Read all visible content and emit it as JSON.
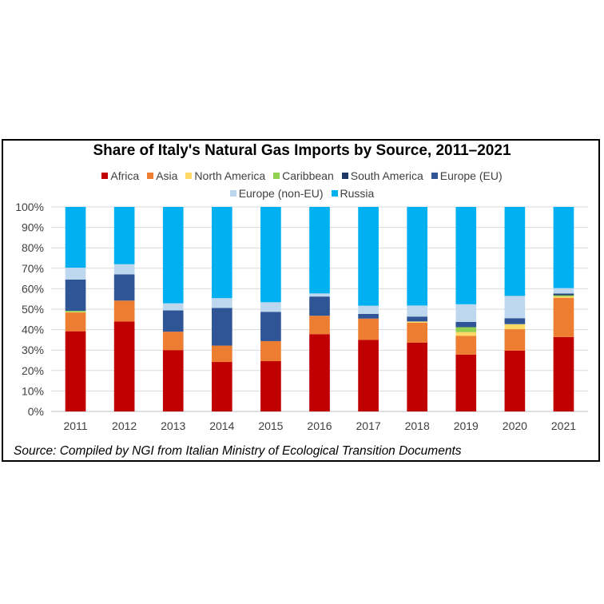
{
  "chart_data": {
    "type": "bar",
    "stacked": true,
    "title": "Share of Italy's Natural Gas Imports by Source, 2011–2021",
    "categories": [
      "2011",
      "2012",
      "2013",
      "2014",
      "2015",
      "2016",
      "2017",
      "2018",
      "2019",
      "2020",
      "2021"
    ],
    "yticks": [
      "0%",
      "10%",
      "20%",
      "30%",
      "40%",
      "50%",
      "60%",
      "70%",
      "80%",
      "90%",
      "100%"
    ],
    "ylim": [
      0,
      100
    ],
    "legend_position": "top",
    "series": [
      {
        "name": "Africa",
        "color": "#C00000",
        "values": [
          39.2,
          44.0,
          30.0,
          24.2,
          24.6,
          37.8,
          35.0,
          33.6,
          27.8,
          29.7,
          36.4
        ]
      },
      {
        "name": "Asia",
        "color": "#ED7D31",
        "values": [
          9.2,
          10.2,
          9.0,
          8.0,
          9.8,
          9.0,
          10.4,
          9.8,
          9.2,
          10.5,
          19.2
        ]
      },
      {
        "name": "North America",
        "color": "#FFD966",
        "values": [
          0.2,
          0,
          0,
          0,
          0,
          0,
          0,
          0.6,
          1.8,
          2.5,
          0.6
        ]
      },
      {
        "name": "Caribbean",
        "color": "#92D050",
        "values": [
          0.6,
          0,
          0,
          0,
          0,
          0,
          0,
          0,
          2.4,
          0,
          0.6
        ]
      },
      {
        "name": "South America",
        "color": "#1F3864",
        "values": [
          0,
          0,
          0,
          0,
          0,
          0,
          0,
          0,
          0,
          0,
          0.6
        ]
      },
      {
        "name": "Europe (EU)",
        "color": "#2F5597",
        "values": [
          15.3,
          12.8,
          10.4,
          18.4,
          14.3,
          9.4,
          2.3,
          2.4,
          2.6,
          2.9,
          0.3
        ]
      },
      {
        "name": "Europe (non-EU)",
        "color": "#BDD7EE",
        "values": [
          5.8,
          5.0,
          3.5,
          4.8,
          4.7,
          1.5,
          4.0,
          5.4,
          8.6,
          10.9,
          2.6
        ]
      },
      {
        "name": "Russia",
        "color": "#00B0F0",
        "values": [
          29.7,
          28.0,
          47.1,
          44.6,
          46.6,
          42.3,
          48.3,
          48.2,
          47.6,
          43.5,
          39.7
        ]
      }
    ]
  },
  "source_note": "Source: Compiled by NGI from Italian Ministry of Ecological Transition Documents"
}
